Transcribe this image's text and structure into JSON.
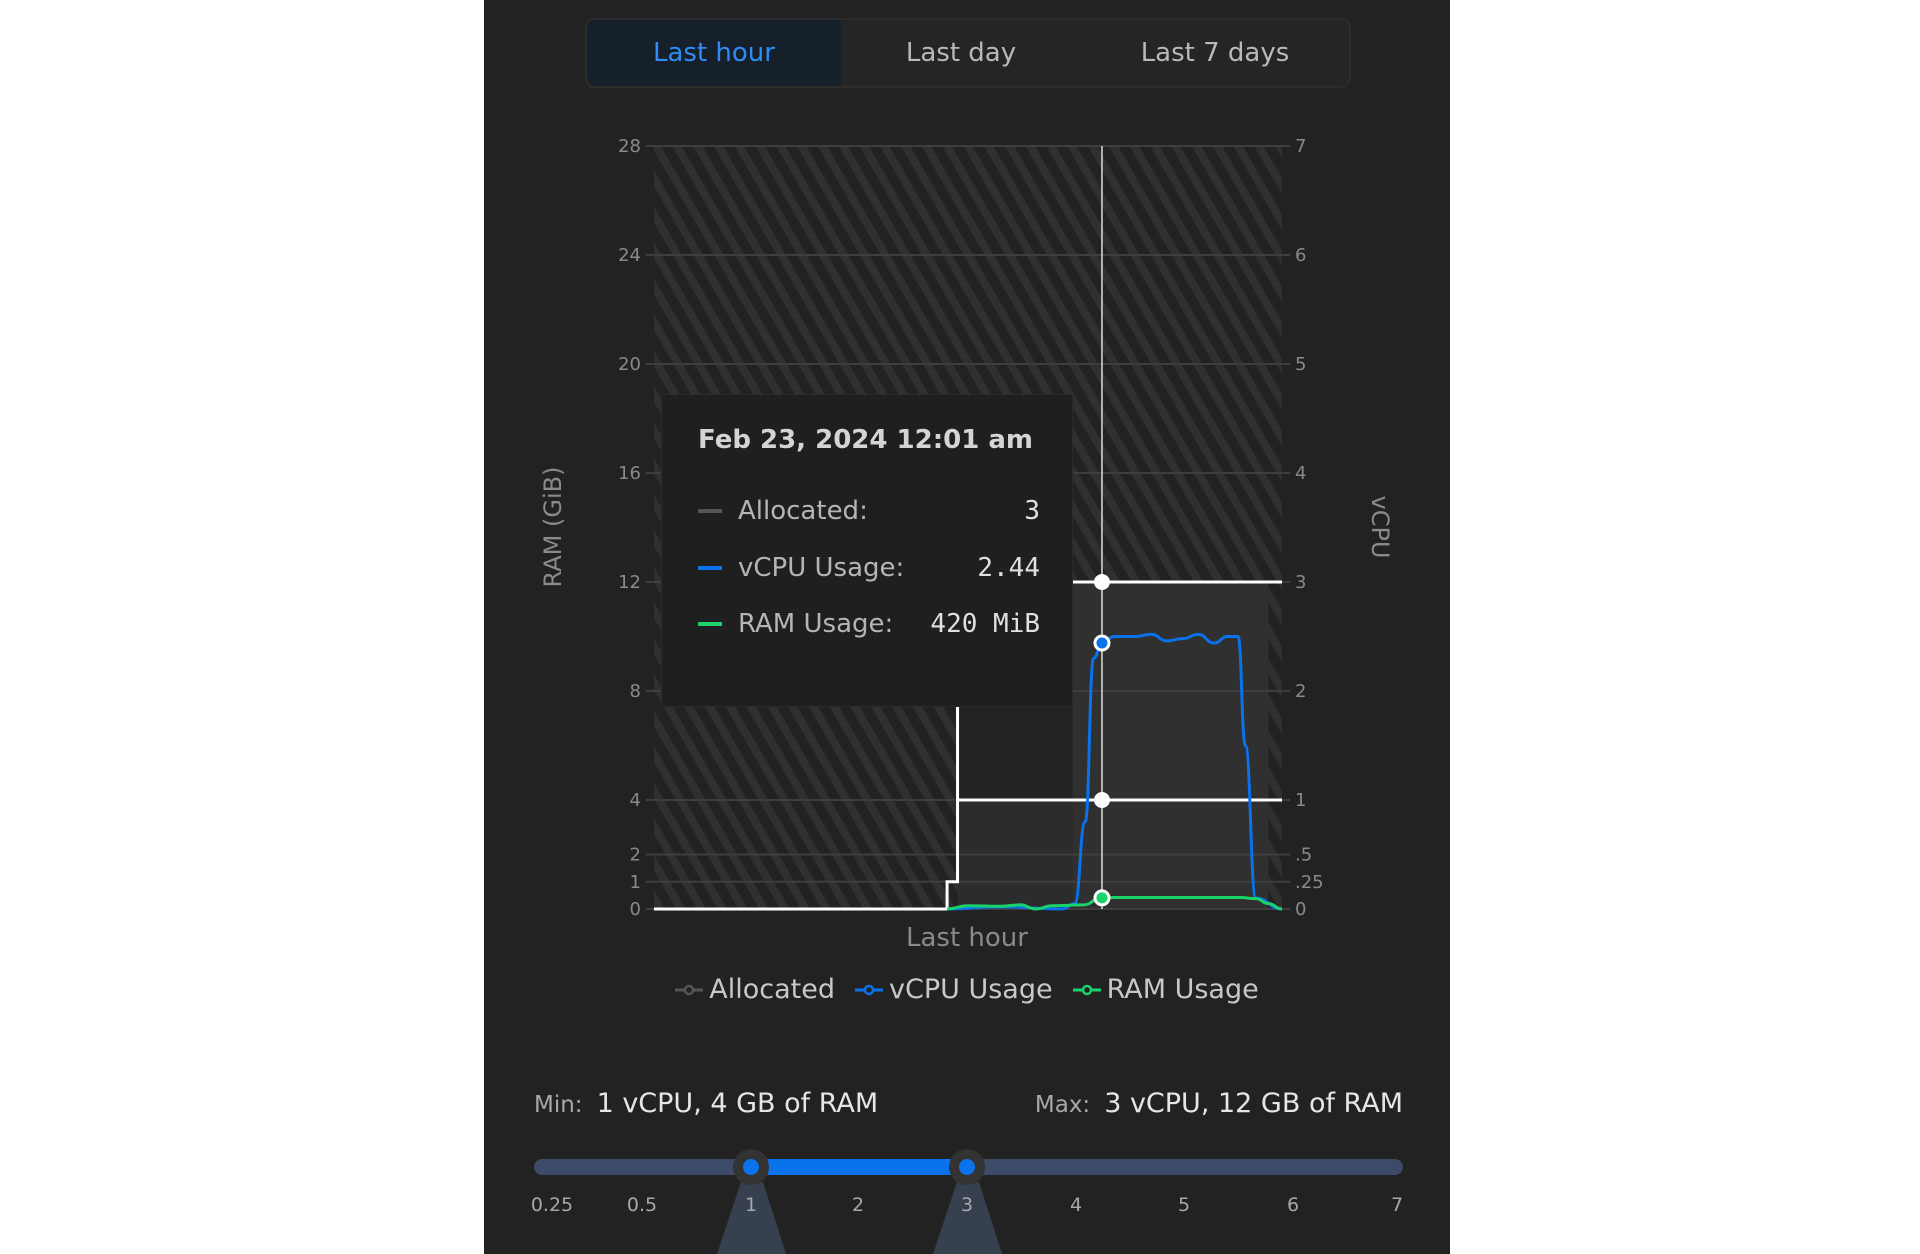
{
  "tabs": [
    {
      "label": "Last hour",
      "active": true
    },
    {
      "label": "Last day",
      "active": false
    },
    {
      "label": "Last 7 days",
      "active": false
    }
  ],
  "chart_data": {
    "type": "line",
    "xlabel": "Last hour",
    "ylabel_left": "RAM (GiB)",
    "ylabel_right": "vCPU",
    "yleft_ticks": [
      "0",
      "1",
      "2",
      "4",
      "8",
      "12",
      "16",
      "20",
      "24",
      "28"
    ],
    "yleft_tick_values": [
      0,
      1,
      2,
      4,
      8,
      12,
      16,
      20,
      24,
      28
    ],
    "yright_ticks": [
      "0",
      ".25",
      ".5",
      "1",
      "2",
      "3",
      "4",
      "5",
      "6",
      "7"
    ],
    "yright_tick_values": [
      0,
      0.25,
      0.5,
      1,
      2,
      3,
      4,
      5,
      6,
      7
    ],
    "ylim_left": [
      0,
      28
    ],
    "ylim_right": [
      0,
      7
    ],
    "xlim_minutes": [
      0,
      60
    ],
    "grid": true,
    "legend_position": "bottom",
    "colors": {
      "allocated": "#ffffff",
      "vcpu": "#0a72ea",
      "ram": "#19d36b",
      "allocated_legend": "#555555"
    },
    "allocated": {
      "name": "Allocated",
      "unit": "vCPU",
      "x": [
        0,
        28,
        28,
        29,
        29,
        60
      ],
      "y": [
        0,
        0,
        0.25,
        0.25,
        1,
        1
      ],
      "max_line": {
        "x": [
          40,
          60
        ],
        "y": 3
      }
    },
    "series": [
      {
        "name": "vCPU Usage",
        "unit": "vCPU",
        "x": [
          28,
          33,
          39,
          40.2,
          41.2,
          42,
          42.8,
          44,
          46,
          47.5,
          49,
          50.5,
          52,
          53.5,
          54.8,
          55.8,
          56.5,
          57.5,
          60
        ],
        "y": [
          0,
          0.02,
          0,
          0.05,
          0.8,
          2.3,
          2.44,
          2.5,
          2.5,
          2.52,
          2.46,
          2.48,
          2.52,
          2.44,
          2.5,
          2.5,
          1.5,
          0.1,
          0
        ]
      },
      {
        "name": "RAM Usage",
        "unit": "GiB",
        "x": [
          28,
          30,
          33,
          35,
          36.5,
          38,
          41,
          42.8,
          44,
          56,
          57.5,
          58.7,
          60
        ],
        "y": [
          0,
          0.12,
          0.1,
          0.15,
          0,
          0.12,
          0.15,
          0.41,
          0.42,
          0.42,
          0.38,
          0.2,
          0
        ]
      }
    ],
    "crosshair_minute": 42.8
  },
  "tooltip": {
    "title": "Feb 23, 2024 12:01 am",
    "rows": [
      {
        "label": "Allocated:",
        "value": "3",
        "color": "#555555"
      },
      {
        "label": "vCPU Usage:",
        "value": "2.44",
        "color": "#0a72ea"
      },
      {
        "label": "RAM Usage:",
        "value": "420 MiB",
        "color": "#19d36b"
      }
    ]
  },
  "legend": [
    {
      "label": "Allocated"
    },
    {
      "label": "vCPU Usage"
    },
    {
      "label": "RAM Usage"
    }
  ],
  "range": {
    "min_key": "Min:",
    "min_value": "1 vCPU, 4 GB of RAM",
    "max_key": "Max:",
    "max_value": "3 vCPU, 12 GB of RAM",
    "ticks": [
      "0.25",
      "0.5",
      "1",
      "2",
      "3",
      "4",
      "5",
      "6",
      "7"
    ],
    "selected_min": "1",
    "selected_max": "3"
  }
}
